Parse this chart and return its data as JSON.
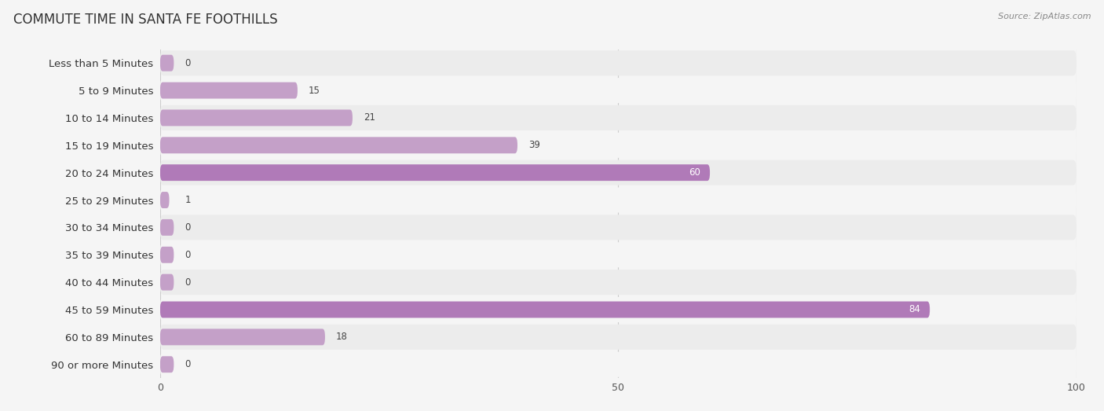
{
  "title": "COMMUTE TIME IN SANTA FE FOOTHILLS",
  "source": "Source: ZipAtlas.com",
  "categories": [
    "Less than 5 Minutes",
    "5 to 9 Minutes",
    "10 to 14 Minutes",
    "15 to 19 Minutes",
    "20 to 24 Minutes",
    "25 to 29 Minutes",
    "30 to 34 Minutes",
    "35 to 39 Minutes",
    "40 to 44 Minutes",
    "45 to 59 Minutes",
    "60 to 89 Minutes",
    "90 or more Minutes"
  ],
  "values": [
    0,
    15,
    21,
    39,
    60,
    1,
    0,
    0,
    0,
    84,
    18,
    0
  ],
  "bar_color_normal": "#c4a0c8",
  "bar_color_highlight": "#b07ab8",
  "row_bg_even": "#ececec",
  "row_bg_odd": "#f5f5f5",
  "fig_bg": "#f5f5f5",
  "title_fontsize": 12,
  "label_fontsize": 9.5,
  "value_fontsize": 8.5,
  "tick_fontsize": 9,
  "xlim": [
    0,
    100
  ],
  "xticks": [
    0,
    50,
    100
  ],
  "highlight_values": [
    60,
    84
  ]
}
